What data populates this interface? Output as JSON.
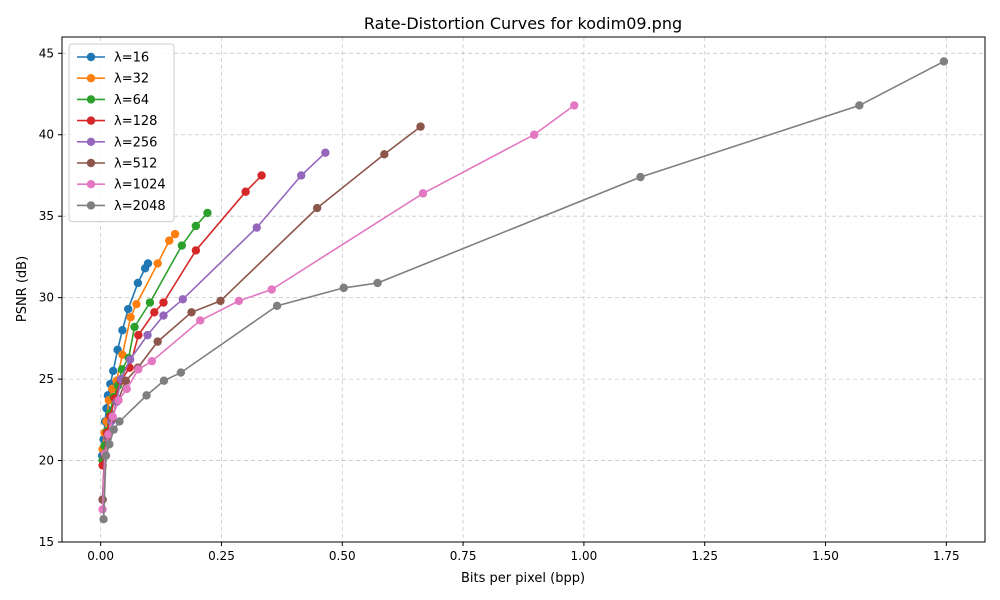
{
  "chart_data": {
    "type": "line",
    "title": "Rate-Distortion Curves for kodim09.png",
    "xlabel": "Bits per pixel (bpp)",
    "ylabel": "PSNR (dB)",
    "xlim": [
      -0.08,
      1.83
    ],
    "ylim": [
      15,
      46
    ],
    "xticks": [
      0.0,
      0.25,
      0.5,
      0.75,
      1.0,
      1.25,
      1.5,
      1.75
    ],
    "xtick_labels": [
      "0.00",
      "0.25",
      "0.50",
      "0.75",
      "1.00",
      "1.25",
      "1.50",
      "1.75"
    ],
    "yticks": [
      15,
      20,
      25,
      30,
      35,
      40,
      45
    ],
    "ytick_labels": [
      "15",
      "20",
      "25",
      "30",
      "35",
      "40",
      "45"
    ],
    "grid": true,
    "legend_position": "top-left",
    "series": [
      {
        "name": "λ=16",
        "color": "#1f77b4",
        "x": [
          0.003,
          0.006,
          0.009,
          0.012,
          0.015,
          0.02,
          0.026,
          0.035,
          0.045,
          0.057,
          0.077,
          0.092,
          0.098
        ],
        "y": [
          20.3,
          21.3,
          22.4,
          23.2,
          24.0,
          24.7,
          25.5,
          26.8,
          28.0,
          29.3,
          30.9,
          31.8,
          32.1
        ]
      },
      {
        "name": "λ=32",
        "color": "#ff7f0e",
        "x": [
          0.004,
          0.008,
          0.012,
          0.017,
          0.024,
          0.033,
          0.045,
          0.062,
          0.074,
          0.118,
          0.142,
          0.154
        ],
        "y": [
          20.7,
          21.7,
          22.4,
          23.7,
          24.4,
          24.9,
          26.5,
          28.8,
          29.6,
          32.1,
          33.5,
          33.9
        ]
      },
      {
        "name": "λ=64",
        "color": "#2ca02c",
        "x": [
          0.004,
          0.008,
          0.013,
          0.019,
          0.027,
          0.036,
          0.044,
          0.058,
          0.07,
          0.102,
          0.168,
          0.197,
          0.221
        ],
        "y": [
          20.0,
          20.9,
          21.8,
          22.9,
          23.9,
          24.6,
          25.6,
          26.3,
          28.2,
          29.7,
          33.2,
          34.4,
          35.2
        ]
      },
      {
        "name": "λ=128",
        "color": "#d62728",
        "x": [
          0.004,
          0.008,
          0.013,
          0.02,
          0.029,
          0.042,
          0.06,
          0.078,
          0.111,
          0.13,
          0.197,
          0.3,
          0.333
        ],
        "y": [
          19.7,
          20.4,
          21.7,
          22.7,
          23.8,
          24.9,
          25.7,
          27.7,
          29.1,
          29.7,
          32.9,
          36.5,
          37.5
        ]
      },
      {
        "name": "λ=256",
        "color": "#9467bd",
        "x": [
          0.004,
          0.008,
          0.014,
          0.022,
          0.033,
          0.042,
          0.061,
          0.097,
          0.13,
          0.17,
          0.323,
          0.415,
          0.465
        ],
        "y": [
          17.6,
          20.4,
          21.4,
          22.4,
          23.6,
          25.0,
          26.2,
          27.7,
          28.9,
          29.9,
          34.3,
          37.5,
          38.9
        ]
      },
      {
        "name": "λ=512",
        "color": "#8c564b",
        "x": [
          0.004,
          0.008,
          0.015,
          0.024,
          0.036,
          0.052,
          0.077,
          0.118,
          0.188,
          0.248,
          0.448,
          0.587,
          0.662
        ],
        "y": [
          17.6,
          20.3,
          21.5,
          22.6,
          23.7,
          24.9,
          25.7,
          27.3,
          29.1,
          29.8,
          35.5,
          38.8,
          40.5
        ]
      },
      {
        "name": "λ=1024",
        "color": "#e377c2",
        "x": [
          0.004,
          0.009,
          0.016,
          0.025,
          0.037,
          0.054,
          0.078,
          0.106,
          0.206,
          0.286,
          0.354,
          0.667,
          0.897,
          0.98
        ],
        "y": [
          17.0,
          20.4,
          21.6,
          22.7,
          23.7,
          24.4,
          25.6,
          26.1,
          28.6,
          29.8,
          30.5,
          36.4,
          40.0,
          41.8
        ]
      },
      {
        "name": "λ=2048",
        "color": "#7f7f7f",
        "x": [
          0.006,
          0.011,
          0.018,
          0.027,
          0.039,
          0.095,
          0.131,
          0.166,
          0.365,
          0.503,
          0.573,
          1.117,
          1.57,
          1.745
        ],
        "y": [
          16.4,
          20.3,
          21.0,
          21.9,
          22.4,
          24.0,
          24.9,
          25.4,
          29.5,
          30.6,
          30.9,
          37.4,
          41.8,
          44.5
        ]
      }
    ]
  }
}
